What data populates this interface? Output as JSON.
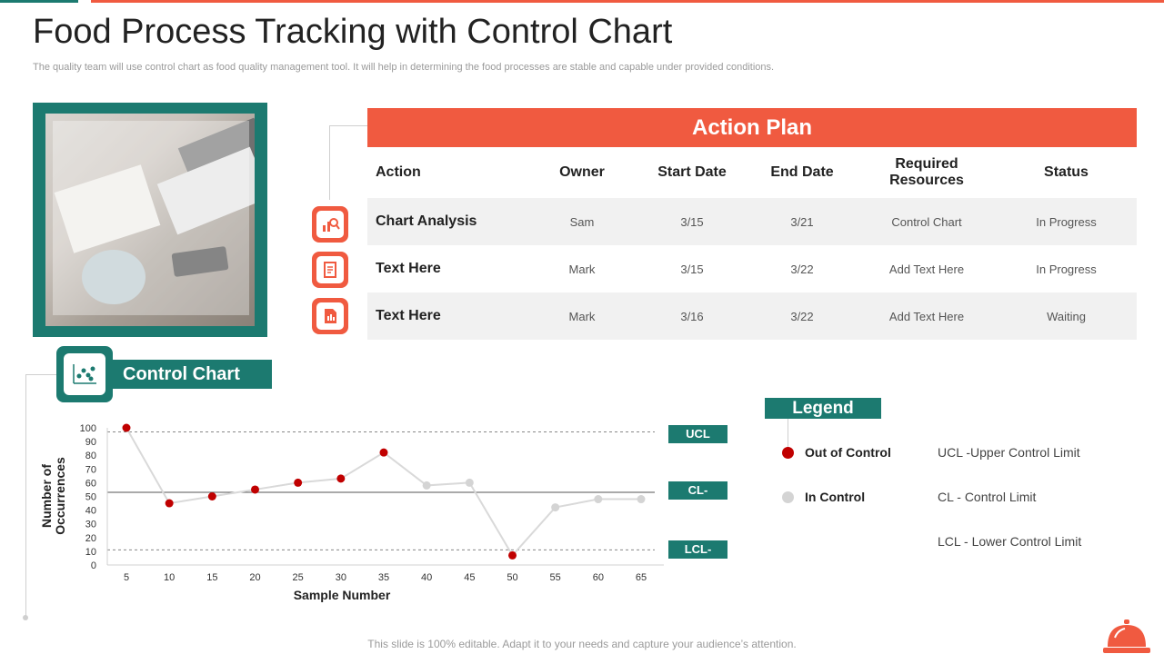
{
  "page": {
    "title": "Food Process Tracking with Control Chart",
    "subtitle": "The quality team will use control chart as food quality management tool. It will help in determining the food processes are stable and capable under provided conditions.",
    "footer": "This slide is 100% editable. Adapt it to your needs and capture your audience’s attention."
  },
  "colors": {
    "teal": "#1c7a70",
    "coral": "#f05a40",
    "out_of_control": "#c00000",
    "in_control": "#d4d4d4"
  },
  "icons": {
    "photo": "person-writing-photo",
    "row_icons": [
      "chart-analysis-icon",
      "document-icon",
      "report-icon"
    ],
    "control_chart": "scatter-chart-icon",
    "corner": "service-bell-icon"
  },
  "action_plan": {
    "title": "Action Plan",
    "headers": [
      "Action",
      "Owner",
      "Start Date",
      "End Date",
      "Required Resources",
      "Status"
    ],
    "rows": [
      [
        "Chart Analysis",
        "Sam",
        "3/15",
        "3/21",
        "Control Chart",
        "In Progress"
      ],
      [
        "Text Here",
        "Mark",
        "3/15",
        "3/22",
        "Add Text Here",
        "In Progress"
      ],
      [
        "Text Here",
        "Mark",
        "3/16",
        "3/22",
        "Add Text Here",
        "Waiting"
      ]
    ]
  },
  "control_chart_label": "Control Chart",
  "limits": {
    "ucl_label": "UCL",
    "cl_label": "CL-",
    "lcl_label": "LCL-"
  },
  "legend": {
    "title": "Legend",
    "items": [
      {
        "label": "Out of Control"
      },
      {
        "label": "In Control"
      }
    ],
    "definitions": [
      "UCL -Upper Control Limit",
      "CL - Control Limit",
      "LCL - Lower Control Limit"
    ]
  },
  "chart_data": {
    "type": "line",
    "xlabel": "Sample Number",
    "ylabel": "Number of Occurrences",
    "x": [
      5,
      10,
      15,
      20,
      25,
      30,
      35,
      40,
      45,
      50,
      55,
      60,
      65
    ],
    "yticks": [
      0,
      10,
      20,
      30,
      40,
      50,
      60,
      70,
      80,
      90,
      100
    ],
    "ylim": [
      0,
      100
    ],
    "series": [
      {
        "values": [
          100,
          45,
          50,
          55,
          60,
          63,
          82,
          58,
          60,
          7,
          42,
          48,
          48
        ],
        "out_of_control": [
          true,
          true,
          true,
          true,
          true,
          true,
          true,
          false,
          false,
          true,
          false,
          false,
          false
        ]
      }
    ],
    "control_limits": {
      "ucl": 97,
      "cl": 53,
      "lcl": 11
    },
    "grid": false
  }
}
